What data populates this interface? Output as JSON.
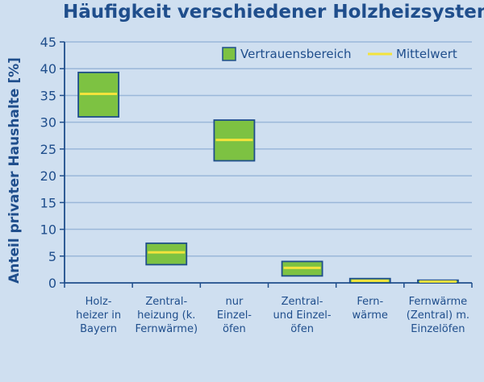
{
  "chart_data": {
    "type": "box",
    "title": "Häufigkeit verschiedener Holzheizsysteme",
    "ylabel": "Anteil privater Haushalte [%]",
    "xlabel": "",
    "ylim": [
      0,
      45
    ],
    "yticks": [
      0,
      5,
      10,
      15,
      20,
      25,
      30,
      35,
      40,
      45
    ],
    "grid": true,
    "legend_position": "top-right",
    "legend": {
      "range_label": "Vertrauensbereich",
      "mean_label": "Mittelwert"
    },
    "categories": [
      [
        "Holz-",
        "heizer in",
        "Bayern"
      ],
      [
        "Zentral-",
        "heizung (k.",
        "Fernwärme)"
      ],
      [
        "nur",
        "Einzel-",
        "öfen"
      ],
      [
        "Zentral-",
        "und Einzel-",
        "öfen"
      ],
      [
        "Fern-",
        "wärme"
      ],
      [
        "Fernwärme",
        "(Zentral) m.",
        "Einzelöfen"
      ]
    ],
    "series": [
      {
        "low": 31.0,
        "high": 39.3,
        "mean": 35.3
      },
      {
        "low": 3.4,
        "high": 7.4,
        "mean": 5.7
      },
      {
        "low": 22.8,
        "high": 30.4,
        "mean": 26.7
      },
      {
        "low": 1.3,
        "high": 4.0,
        "mean": 2.8
      },
      {
        "low": 0.0,
        "high": 0.8,
        "mean": 0.4
      },
      {
        "low": 0.0,
        "high": 0.5,
        "mean": 0.25
      }
    ],
    "colors": {
      "box_fill": "#7dc242",
      "box_stroke": "#1f4e8c",
      "mean_line": "#f3e33c",
      "grid": "#9ab7d9",
      "text": "#1f4e8c",
      "background": "#cfdff0"
    }
  }
}
